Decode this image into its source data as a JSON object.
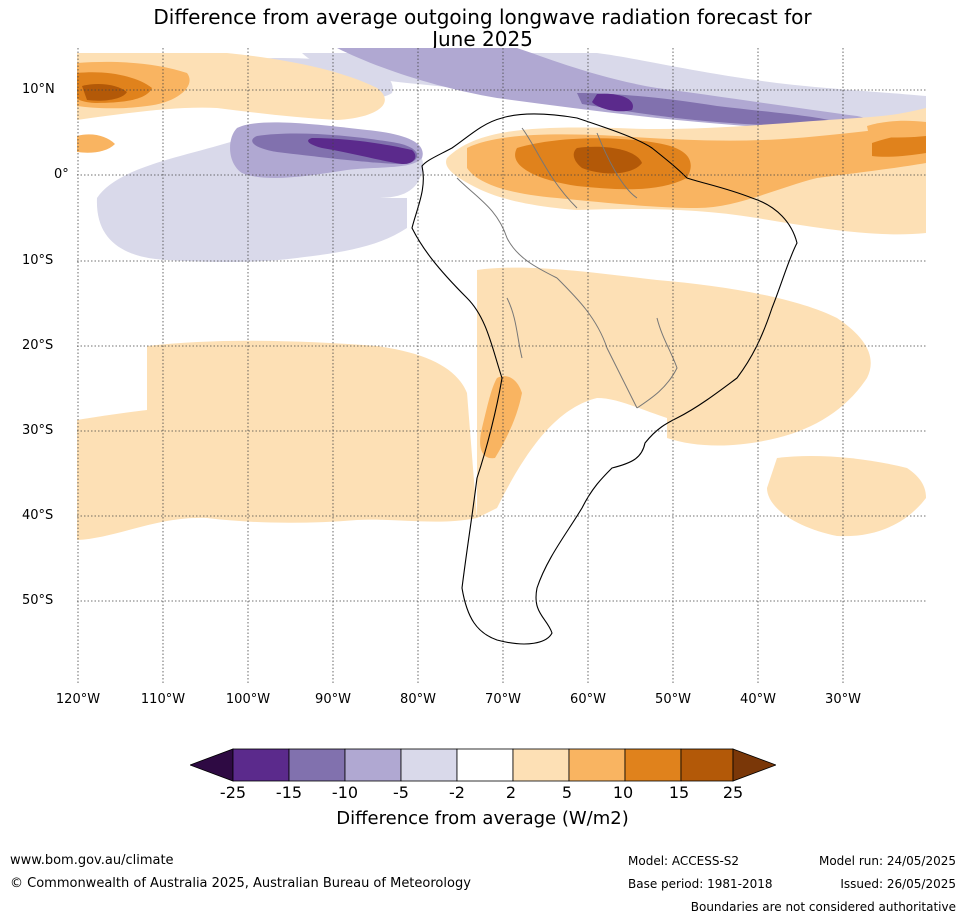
{
  "title": {
    "line1": "Difference from average outgoing longwave radiation forecast for",
    "line2": "June 2025"
  },
  "axes": {
    "lat_labels": [
      "10°N",
      "0°",
      "10°S",
      "20°S",
      "30°S",
      "40°S",
      "50°S"
    ],
    "lon_labels": [
      "120°W",
      "110°W",
      "100°W",
      "90°W",
      "80°W",
      "70°W",
      "60°W",
      "50°W",
      "40°W",
      "30°W"
    ],
    "gridlines": "dotted"
  },
  "colorbar": {
    "title": "Difference from average (W/m2)",
    "tick_labels": [
      "-25",
      "-15",
      "-10",
      "-5",
      "-2",
      "2",
      "5",
      "10",
      "15",
      "25"
    ],
    "colors": [
      "#2e0a43",
      "#5b2a8c",
      "#8171ae",
      "#b0a8d2",
      "#d9d9ea",
      "#ffffff",
      "#fde0b5",
      "#f9b461",
      "#e0821c",
      "#b35908",
      "#7a3708"
    ],
    "extend": "both"
  },
  "palette": {
    "p5": "#d9d9ea",
    "p10": "#b0a8d2",
    "p15": "#8171ae",
    "p25": "#5b2a8c",
    "o2": "#fde0b5",
    "o5": "#f9b461",
    "o10": "#e0821c",
    "o15": "#b35908"
  },
  "footer": {
    "url": "www.bom.gov.au/climate",
    "copyright": "© Commonwealth of Australia 2025, Australian Bureau of Meteorology",
    "model": "Model: ACCESS-S2",
    "base_period": "Base period: 1981-2018",
    "model_run": "Model run: 24/05/2025",
    "issued": "Issued: 26/05/2025",
    "disclaimer": "Boundaries are not considered authoritative"
  }
}
